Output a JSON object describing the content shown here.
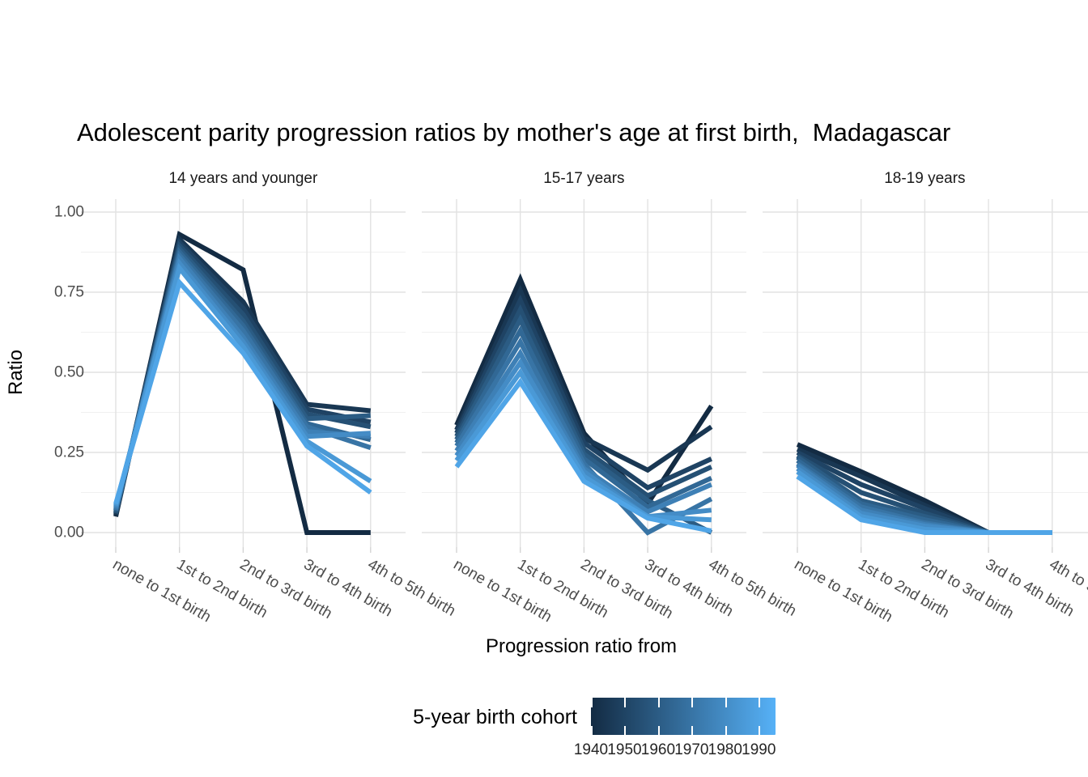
{
  "title": "Adolescent parity progression ratios by mother's age at first birth,  Madagascar",
  "y_axis": {
    "title": "Ratio",
    "tick_labels": [
      "1.00",
      "0.75",
      "0.50",
      "0.25",
      "0.00"
    ]
  },
  "x_axis": {
    "title": "Progression ratio from",
    "tick_labels": [
      "none to 1st birth",
      "1st to 2nd birth",
      "2nd to 3rd birth",
      "3rd to 4th birth",
      "4th to 5th birth"
    ]
  },
  "legend": {
    "title": "5-year birth cohort",
    "tick_labels": [
      "1940",
      "1950",
      "1960",
      "1970",
      "1980",
      "1990"
    ],
    "low_color": "#132B43",
    "high_color": "#56B1F7"
  },
  "chart_data": {
    "type": "line",
    "title": "Adolescent parity progression ratios by mother's age at first birth,  Madagascar",
    "xlabel": "Progression ratio from",
    "ylabel": "Ratio",
    "ylim": [
      0,
      1
    ],
    "y_ticks": [
      0,
      0.25,
      0.5,
      0.75,
      1.0
    ],
    "y_minor_ticks": [
      0.125,
      0.375,
      0.625,
      0.875
    ],
    "grid": true,
    "legend_position": "bottom",
    "color_scale": {
      "low": "#132B43",
      "high": "#56B1F7",
      "domain": [
        1940,
        1995
      ],
      "label_ticks": [
        1940,
        1950,
        1960,
        1970,
        1980,
        1990
      ]
    },
    "categories": [
      "none to 1st birth",
      "1st to 2nd birth",
      "2nd to 3rd birth",
      "3rd to 4th birth",
      "4th to 5th birth"
    ],
    "cohorts": [
      1940,
      1945,
      1950,
      1955,
      1960,
      1965,
      1970,
      1975,
      1980,
      1985,
      1990
    ],
    "facets": [
      {
        "name": "14 years and younger",
        "series": [
          [
            0.05,
            0.93,
            0.82,
            0.0,
            0.0
          ],
          [
            0.055,
            0.915,
            0.72,
            0.4,
            0.38
          ],
          [
            0.06,
            0.905,
            0.7,
            0.385,
            0.345
          ],
          [
            0.06,
            0.895,
            0.68,
            0.37,
            0.33
          ],
          [
            0.065,
            0.885,
            0.66,
            0.355,
            0.365
          ],
          [
            0.07,
            0.875,
            0.645,
            0.34,
            0.29
          ],
          [
            0.07,
            0.865,
            0.63,
            0.33,
            0.265
          ],
          [
            0.075,
            0.855,
            0.61,
            0.315,
            0.3
          ],
          [
            0.08,
            0.84,
            0.595,
            0.3,
            0.31
          ],
          [
            0.085,
            0.825,
            0.58,
            0.285,
            0.16
          ],
          [
            0.09,
            0.78,
            0.56,
            0.27,
            0.125
          ]
        ]
      },
      {
        "name": "15-17 years",
        "series": [
          [
            0.335,
            0.79,
            0.31,
            0.09,
            0.395
          ],
          [
            0.32,
            0.755,
            0.295,
            0.195,
            0.33
          ],
          [
            0.31,
            0.725,
            0.28,
            0.14,
            0.23
          ],
          [
            0.3,
            0.695,
            0.26,
            0.115,
            0.205
          ],
          [
            0.29,
            0.665,
            0.245,
            0.1,
            0.0
          ],
          [
            0.28,
            0.63,
            0.23,
            0.08,
            0.17
          ],
          [
            0.27,
            0.595,
            0.215,
            0.0,
            0.105
          ],
          [
            0.255,
            0.56,
            0.2,
            0.065,
            0.15
          ],
          [
            0.24,
            0.53,
            0.19,
            0.05,
            0.07
          ],
          [
            0.225,
            0.5,
            0.175,
            0.05,
            0.04
          ],
          [
            0.205,
            0.47,
            0.16,
            0.045,
            0.005
          ]
        ]
      },
      {
        "name": "18-19 years",
        "series": [
          [
            0.275,
            0.19,
            0.1,
            0.0,
            0.0
          ],
          [
            0.26,
            0.175,
            0.085,
            0.0,
            0.0
          ],
          [
            0.25,
            0.15,
            0.075,
            0.0,
            0.0
          ],
          [
            0.24,
            0.125,
            0.06,
            0.0,
            0.0
          ],
          [
            0.235,
            0.1,
            0.05,
            0.0,
            0.0
          ],
          [
            0.225,
            0.09,
            0.04,
            0.0,
            0.0
          ],
          [
            0.215,
            0.08,
            0.03,
            0.0,
            0.0
          ],
          [
            0.21,
            0.07,
            0.025,
            0.0,
            0.0
          ],
          [
            0.2,
            0.06,
            0.02,
            0.0,
            0.0
          ],
          [
            0.19,
            0.05,
            0.01,
            0.0,
            0.0
          ],
          [
            0.175,
            0.04,
            0.0,
            0.0,
            0.0
          ]
        ]
      }
    ]
  }
}
